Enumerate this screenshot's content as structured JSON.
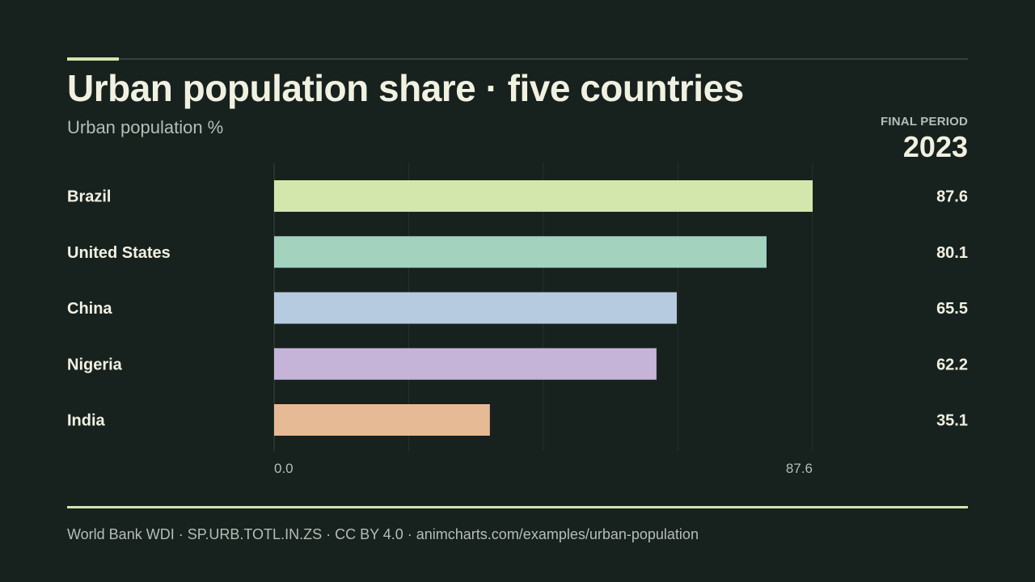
{
  "header": {
    "title": "Urban population share · five countries",
    "subtitle": "Urban population %",
    "period_label": "FINAL PERIOD",
    "period_value": "2023"
  },
  "colors": {
    "background": "#17211e",
    "accent": "#d3e6ab",
    "text": "#f1f1e1",
    "muted": "#b5bdb6",
    "grid": "#26302c"
  },
  "chart_data": {
    "type": "bar",
    "orientation": "horizontal",
    "categories": [
      "Brazil",
      "United States",
      "China",
      "Nigeria",
      "India"
    ],
    "values": [
      87.6,
      80.1,
      65.5,
      62.2,
      35.1
    ],
    "value_labels": [
      "87.6",
      "80.1",
      "65.5",
      "62.2",
      "35.1"
    ],
    "bar_colors": [
      "#d3e6ab",
      "#a3d2bf",
      "#b7cbe0",
      "#c6b3d8",
      "#e5ba95"
    ],
    "xlim": [
      0,
      87.6
    ],
    "x_tick_labels": [
      "0.0",
      "87.6"
    ],
    "grid": true
  },
  "footer": {
    "source": "World Bank WDI · SP.URB.TOTL.IN.ZS · CC BY 4.0 · animcharts.com/examples/urban-population"
  }
}
